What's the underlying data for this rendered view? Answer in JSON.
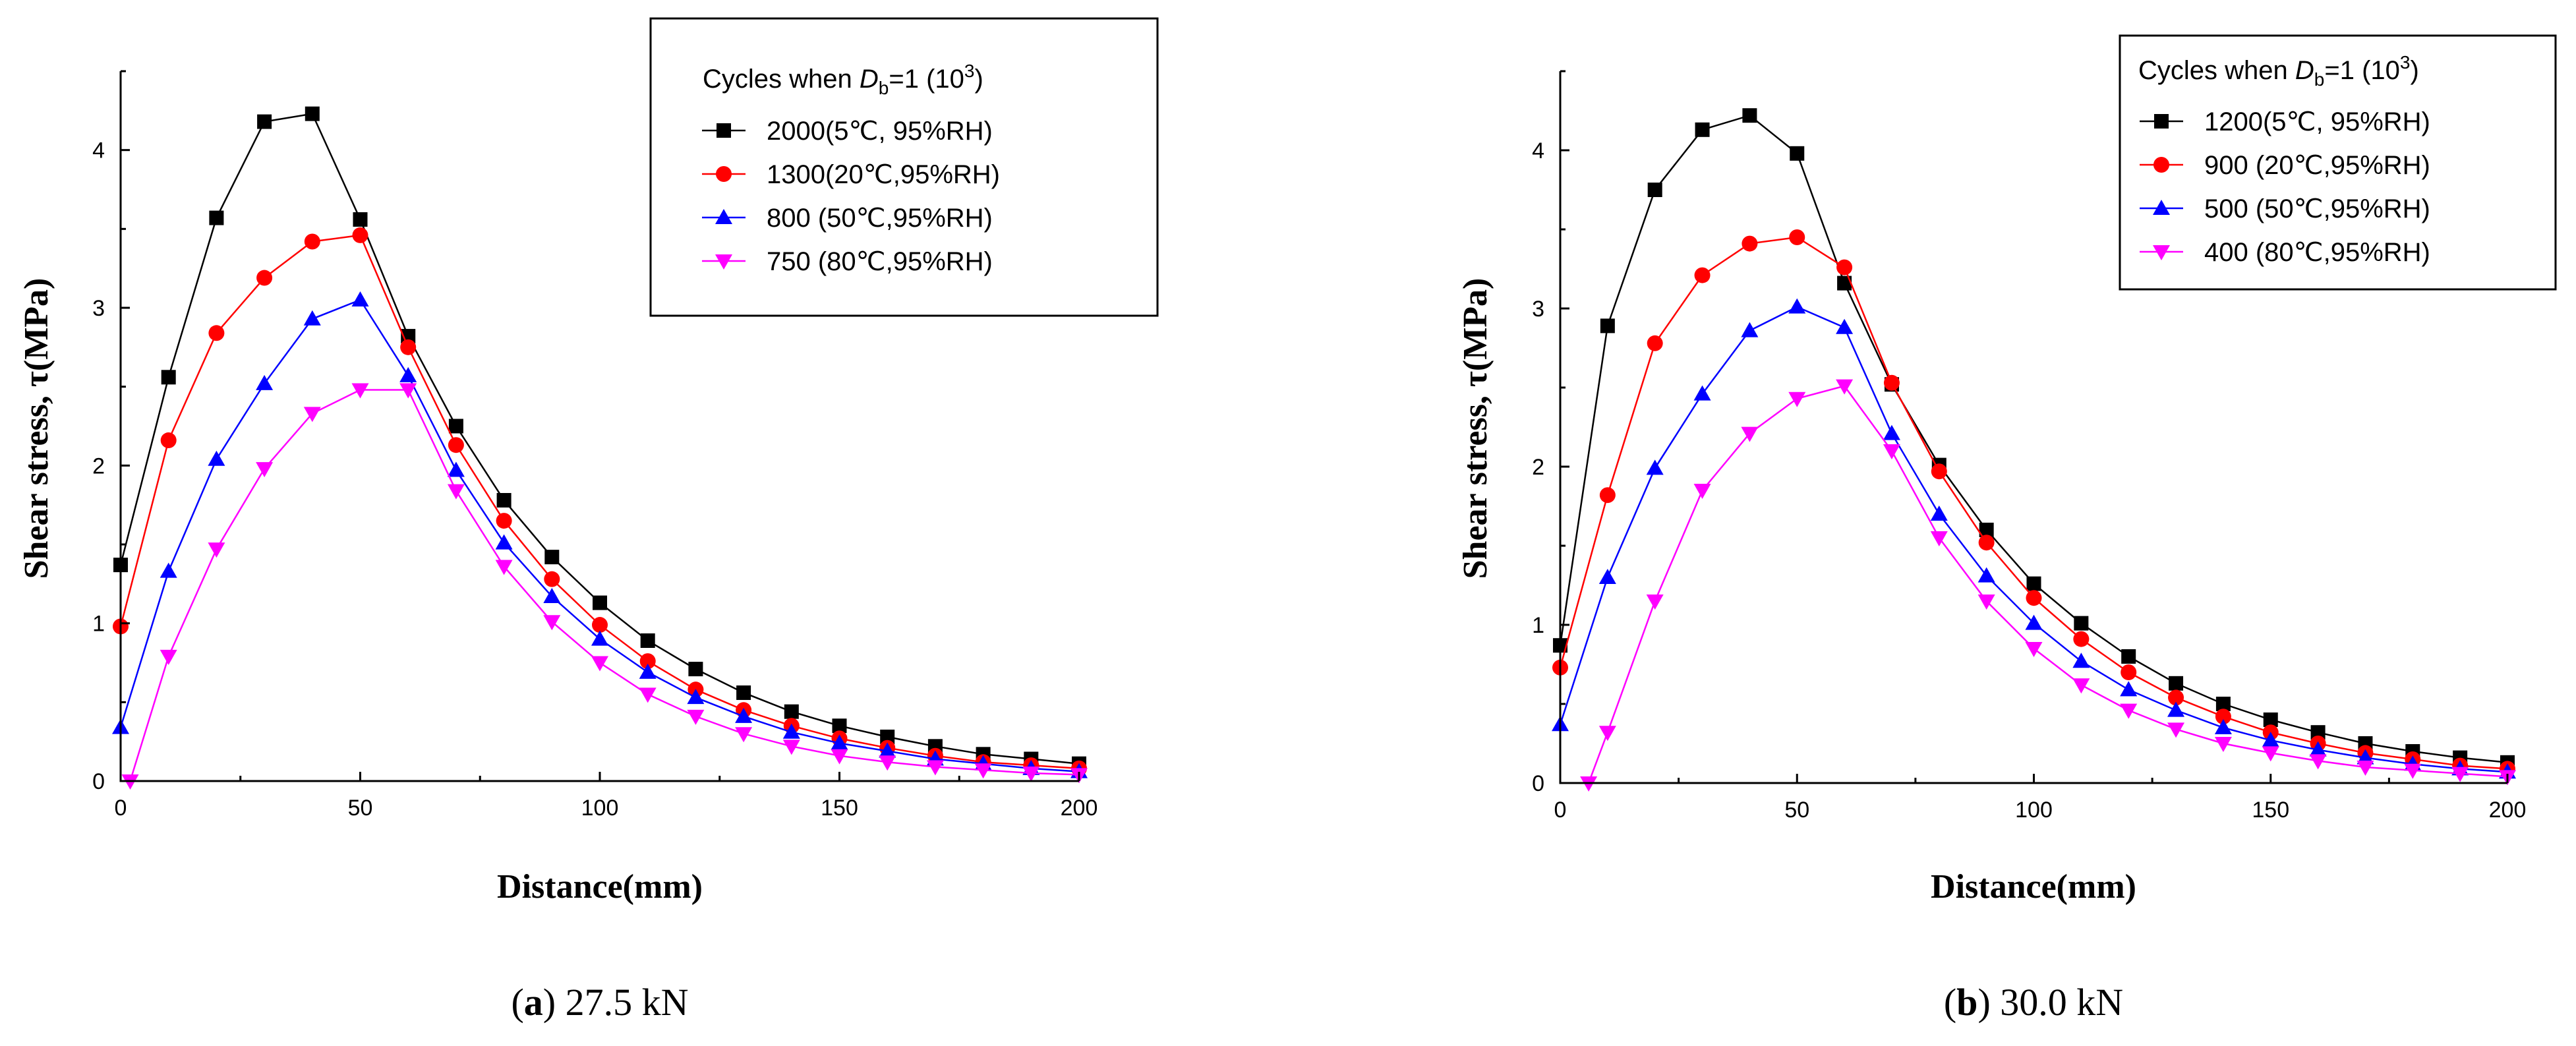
{
  "chart_data": [
    {
      "type": "line",
      "caption_letter": "a",
      "caption_text": " 27.5 kN",
      "xlabel": "Distance(mm)",
      "ylabel": "Shear stress, τ(MPa)",
      "xlim": [
        0,
        200
      ],
      "ylim": [
        0,
        4.5
      ],
      "x_ticks": [
        "0",
        "50",
        "100",
        "150",
        "200"
      ],
      "y_ticks": [
        "0",
        "1",
        "2",
        "3",
        "4"
      ],
      "legend_title_prefix": "Cycles when ",
      "legend_title_var": "D",
      "legend_title_sub": "b",
      "legend_title_suffix": "=1 (10",
      "legend_title_sup": "3",
      "legend_title_end": ")",
      "series": [
        {
          "name": "2000(5℃,  95%RH)",
          "color": "#000000",
          "marker": "square",
          "x": [
            0,
            10,
            20,
            30,
            40,
            50,
            60,
            70,
            80,
            90,
            100,
            110,
            120,
            130,
            140,
            150,
            160,
            170,
            180,
            190,
            200
          ],
          "values": [
            1.37,
            2.56,
            3.57,
            4.18,
            4.23,
            3.56,
            2.82,
            2.25,
            1.78,
            1.42,
            1.13,
            0.89,
            0.71,
            0.56,
            0.44,
            0.35,
            0.28,
            0.22,
            0.17,
            0.14,
            0.11
          ]
        },
        {
          "name": "1300(20℃,95%RH)",
          "color": "#ff0000",
          "marker": "circle",
          "x": [
            0,
            10,
            20,
            30,
            40,
            50,
            60,
            70,
            80,
            90,
            100,
            110,
            120,
            130,
            140,
            150,
            160,
            170,
            180,
            190,
            200
          ],
          "values": [
            0.98,
            2.16,
            2.84,
            3.19,
            3.42,
            3.46,
            2.75,
            2.13,
            1.65,
            1.28,
            0.99,
            0.76,
            0.58,
            0.45,
            0.35,
            0.27,
            0.21,
            0.16,
            0.12,
            0.1,
            0.08
          ]
        },
        {
          "name": "800  (50℃,95%RH)",
          "color": "#0000ff",
          "marker": "triangle-up",
          "x": [
            0,
            10,
            20,
            30,
            40,
            50,
            60,
            70,
            80,
            90,
            100,
            110,
            120,
            130,
            140,
            150,
            160,
            170,
            180,
            190,
            200
          ],
          "values": [
            0.34,
            1.33,
            2.04,
            2.52,
            2.93,
            3.05,
            2.57,
            1.97,
            1.51,
            1.17,
            0.9,
            0.69,
            0.53,
            0.41,
            0.31,
            0.24,
            0.19,
            0.14,
            0.11,
            0.08,
            0.06
          ]
        },
        {
          "name": "750  (80℃,95%RH)",
          "color": "#ff00ff",
          "marker": "triangle-down",
          "x": [
            2,
            10,
            20,
            30,
            40,
            50,
            60,
            70,
            80,
            90,
            100,
            110,
            120,
            130,
            140,
            150,
            160,
            170,
            180,
            190,
            200
          ],
          "values": [
            0.0,
            0.79,
            1.47,
            1.98,
            2.33,
            2.48,
            2.48,
            1.84,
            1.36,
            1.01,
            0.75,
            0.55,
            0.41,
            0.3,
            0.22,
            0.16,
            0.12,
            0.09,
            0.07,
            0.05,
            0.04
          ]
        }
      ]
    },
    {
      "type": "line",
      "caption_letter": "b",
      "caption_text": " 30.0 kN",
      "xlabel": "Distance(mm)",
      "ylabel": "Shear stress, τ(MPa)",
      "xlim": [
        0,
        200
      ],
      "ylim": [
        0,
        4.5
      ],
      "x_ticks": [
        "0",
        "50",
        "100",
        "150",
        "200"
      ],
      "y_ticks": [
        "0",
        "1",
        "2",
        "3",
        "4"
      ],
      "legend_title_prefix": "Cycles when ",
      "legend_title_var": "D",
      "legend_title_sub": "b",
      "legend_title_suffix": "=1 (10",
      "legend_title_sup": "3",
      "legend_title_end": ")",
      "series": [
        {
          "name": "1200(5℃,  95%RH)",
          "color": "#000000",
          "marker": "square",
          "x": [
            0,
            10,
            20,
            30,
            40,
            50,
            60,
            70,
            80,
            90,
            100,
            110,
            120,
            130,
            140,
            150,
            160,
            170,
            180,
            190,
            200
          ],
          "values": [
            0.87,
            2.89,
            3.75,
            4.13,
            4.22,
            3.98,
            3.16,
            2.52,
            2.01,
            1.6,
            1.26,
            1.01,
            0.8,
            0.63,
            0.5,
            0.4,
            0.32,
            0.25,
            0.2,
            0.16,
            0.13
          ]
        },
        {
          "name": "900  (20℃,95%RH)",
          "color": "#ff0000",
          "marker": "circle",
          "x": [
            0,
            10,
            20,
            30,
            40,
            50,
            60,
            70,
            80,
            90,
            100,
            110,
            120,
            130,
            140,
            150,
            160,
            170,
            180,
            190,
            200
          ],
          "values": [
            0.73,
            1.82,
            2.78,
            3.21,
            3.41,
            3.45,
            3.26,
            2.53,
            1.97,
            1.52,
            1.17,
            0.91,
            0.7,
            0.54,
            0.42,
            0.32,
            0.25,
            0.19,
            0.15,
            0.11,
            0.09
          ]
        },
        {
          "name": "500  (50℃,95%RH)",
          "color": "#0000ff",
          "marker": "triangle-up",
          "x": [
            0,
            10,
            20,
            30,
            40,
            50,
            60,
            70,
            80,
            90,
            100,
            110,
            120,
            130,
            140,
            150,
            160,
            170,
            180,
            190,
            200
          ],
          "values": [
            0.37,
            1.3,
            1.99,
            2.46,
            2.86,
            3.01,
            2.88,
            2.21,
            1.7,
            1.31,
            1.01,
            0.77,
            0.59,
            0.46,
            0.35,
            0.27,
            0.21,
            0.16,
            0.12,
            0.09,
            0.07
          ]
        },
        {
          "name": "400  (80℃,95%RH)",
          "color": "#ff00ff",
          "marker": "triangle-down",
          "x": [
            6,
            10,
            20,
            30,
            40,
            50,
            60,
            70,
            80,
            90,
            100,
            110,
            120,
            130,
            140,
            150,
            160,
            170,
            180,
            190,
            200
          ],
          "values": [
            0.0,
            0.32,
            1.15,
            1.85,
            2.21,
            2.43,
            2.51,
            2.1,
            1.55,
            1.15,
            0.85,
            0.62,
            0.46,
            0.34,
            0.25,
            0.19,
            0.14,
            0.1,
            0.08,
            0.06,
            0.04
          ]
        }
      ]
    }
  ]
}
